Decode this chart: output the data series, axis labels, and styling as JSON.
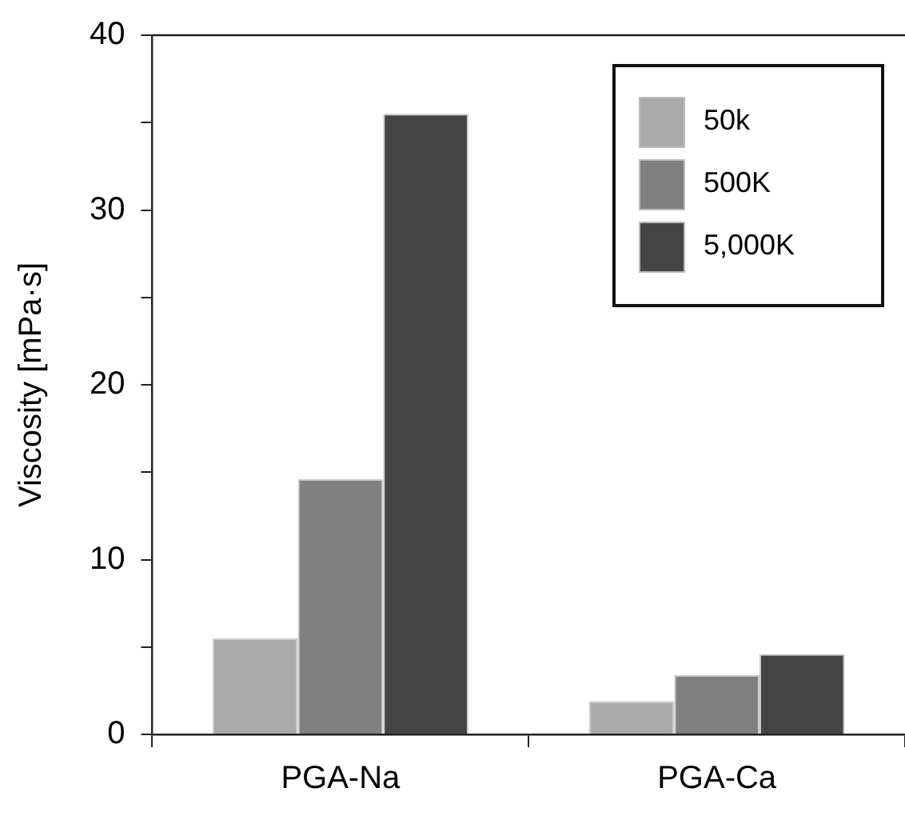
{
  "chart_data": {
    "type": "bar",
    "ylabel": "Viscosity [mPa·s]",
    "categories": [
      "PGA-Na",
      "PGA-Ca"
    ],
    "series": [
      {
        "name": "50k",
        "color": "#aaaaaa",
        "values": [
          5.5,
          1.9
        ]
      },
      {
        "name": "500K",
        "color": "#808080",
        "values": [
          14.6,
          3.4
        ]
      },
      {
        "name": "5,000K",
        "color": "#444444",
        "values": [
          35.5,
          4.6
        ]
      }
    ],
    "ylim": [
      0,
      40
    ],
    "yticks": [
      0,
      {
        "value": 5,
        "label": null
      },
      10,
      {
        "value": 15,
        "label": null
      },
      20,
      {
        "value": 25,
        "label": null
      },
      30,
      {
        "value": 35,
        "label": null
      },
      40
    ],
    "grid": false,
    "legend": "top right"
  }
}
